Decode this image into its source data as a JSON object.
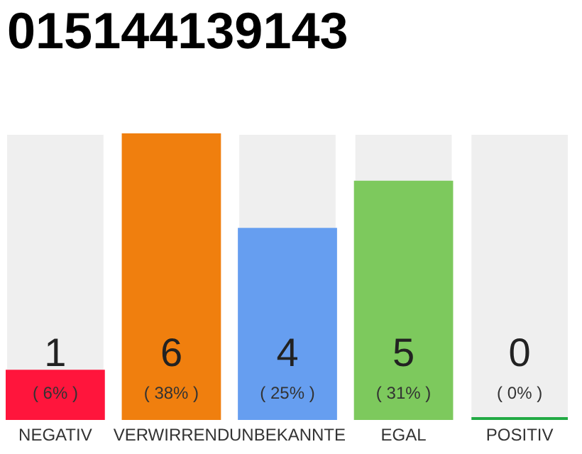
{
  "chart_data": {
    "type": "bar",
    "title": "015144139143",
    "categories": [
      "NEGATIV",
      "VERWIRREND",
      "UNBEKANNTE",
      "EGAL",
      "POSITIV"
    ],
    "values": [
      1,
      6,
      4,
      5,
      0
    ],
    "colors": [
      "#ff153c",
      "#f07f0e",
      "#669ef0",
      "#7dc95d",
      "#22aa44"
    ],
    "data_labels": true,
    "annotations": [
      "( 6% )",
      "( 38% )",
      "( 25% )",
      "( 31% )",
      "( 0% )"
    ]
  }
}
